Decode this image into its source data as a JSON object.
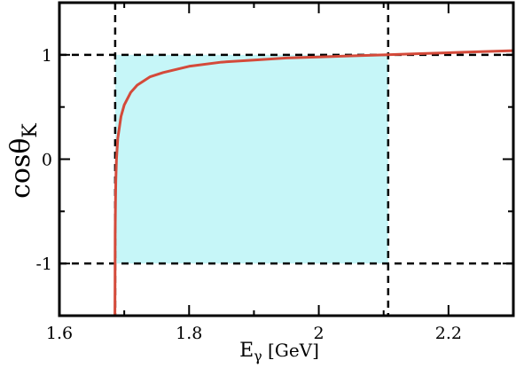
{
  "chart_data": {
    "type": "line",
    "title": "",
    "xlabel": {
      "main": "E",
      "sub": "γ",
      "unit": "[GeV]"
    },
    "ylabel": {
      "main": "cosθ",
      "sub": "K"
    },
    "xlim": [
      1.6,
      2.3
    ],
    "ylim": [
      -1.5,
      1.5
    ],
    "x_ticks": [
      1.6,
      1.8,
      2.0,
      2.2
    ],
    "x_tick_labels": [
      "1.6",
      "1.8",
      "2",
      "2.2"
    ],
    "y_ticks": [
      -1,
      0,
      1
    ],
    "y_tick_labels": [
      "-1",
      "0",
      "1"
    ],
    "grid": false,
    "legend": "none",
    "region": {
      "x": [
        1.686,
        2.107
      ],
      "y": [
        -1,
        1
      ],
      "color": "#c6f6f8"
    },
    "reference_lines": {
      "vertical_x": [
        1.686,
        2.107
      ],
      "horizontal_y": [
        -1,
        1
      ],
      "style": "dashed",
      "color": "#000000"
    },
    "series": [
      {
        "color": "#d44a3a",
        "x": [
          1.6856,
          1.6858,
          1.686,
          1.6865,
          1.687,
          1.688,
          1.69,
          1.695,
          1.7,
          1.71,
          1.72,
          1.74,
          1.76,
          1.78,
          1.8,
          1.85,
          1.9,
          1.95,
          2.0,
          2.05,
          2.1,
          2.15,
          2.2,
          2.25,
          2.3
        ],
        "y": [
          -1.5,
          -1.2,
          -0.7,
          -0.4,
          -0.2,
          0.0,
          0.2,
          0.41,
          0.52,
          0.64,
          0.71,
          0.79,
          0.83,
          0.86,
          0.89,
          0.93,
          0.95,
          0.97,
          0.98,
          0.99,
          1.0,
          1.01,
          1.02,
          1.03,
          1.04
        ]
      }
    ]
  }
}
